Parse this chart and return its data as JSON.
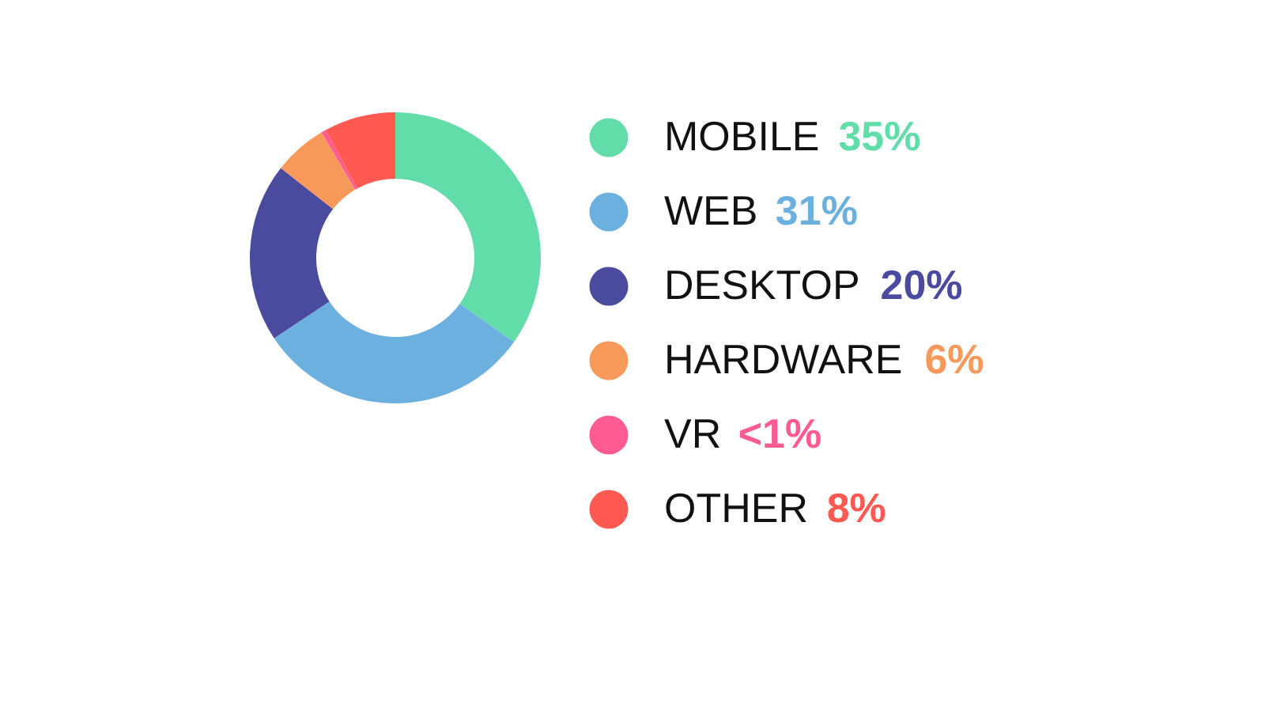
{
  "chart_data": {
    "type": "donut",
    "legend": "right",
    "categories": [
      "MOBILE",
      "WEB",
      "DESKTOP",
      "HARDWARE",
      "VR",
      "OTHER"
    ],
    "values": [
      35,
      31,
      20,
      6,
      0.5,
      8
    ],
    "value_labels": [
      "35%",
      "31%",
      "20%",
      "6%",
      "<1%",
      "8%"
    ],
    "colors": [
      "#62ddaa",
      "#6cb0e0",
      "#4a4a9e",
      "#f7995a",
      "#ff5a92",
      "#ff5a52"
    ]
  }
}
